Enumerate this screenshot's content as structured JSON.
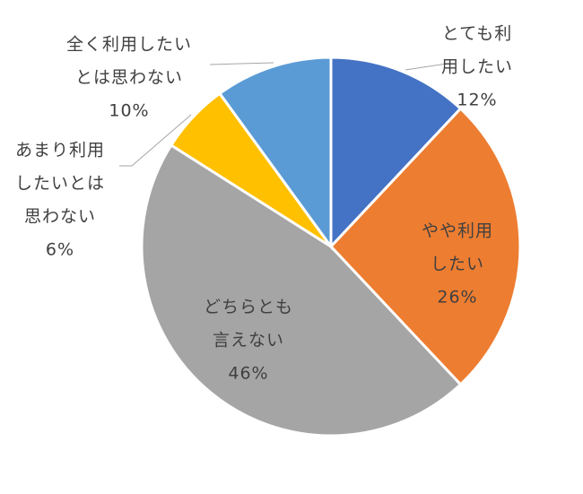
{
  "chart_data": {
    "type": "pie",
    "title": "",
    "slices": [
      {
        "label_lines": [
          "とても利",
          "用したい"
        ],
        "value": 12,
        "value_label": "12%",
        "color": "#4472c4"
      },
      {
        "label_lines": [
          "やや利用",
          "したい"
        ],
        "value": 26,
        "value_label": "26%",
        "color": "#ed7d31"
      },
      {
        "label_lines": [
          "どちらとも",
          "言えない"
        ],
        "value": 46,
        "value_label": "46%",
        "color": "#a5a5a5"
      },
      {
        "label_lines": [
          "あまり利用",
          "したいとは",
          "思わない"
        ],
        "value": 6,
        "value_label": "6%",
        "color": "#ffc000"
      },
      {
        "label_lines": [
          "全く利用したい",
          "とは思わない"
        ],
        "value": 10,
        "value_label": "10%",
        "color": "#5b9bd5"
      }
    ]
  }
}
